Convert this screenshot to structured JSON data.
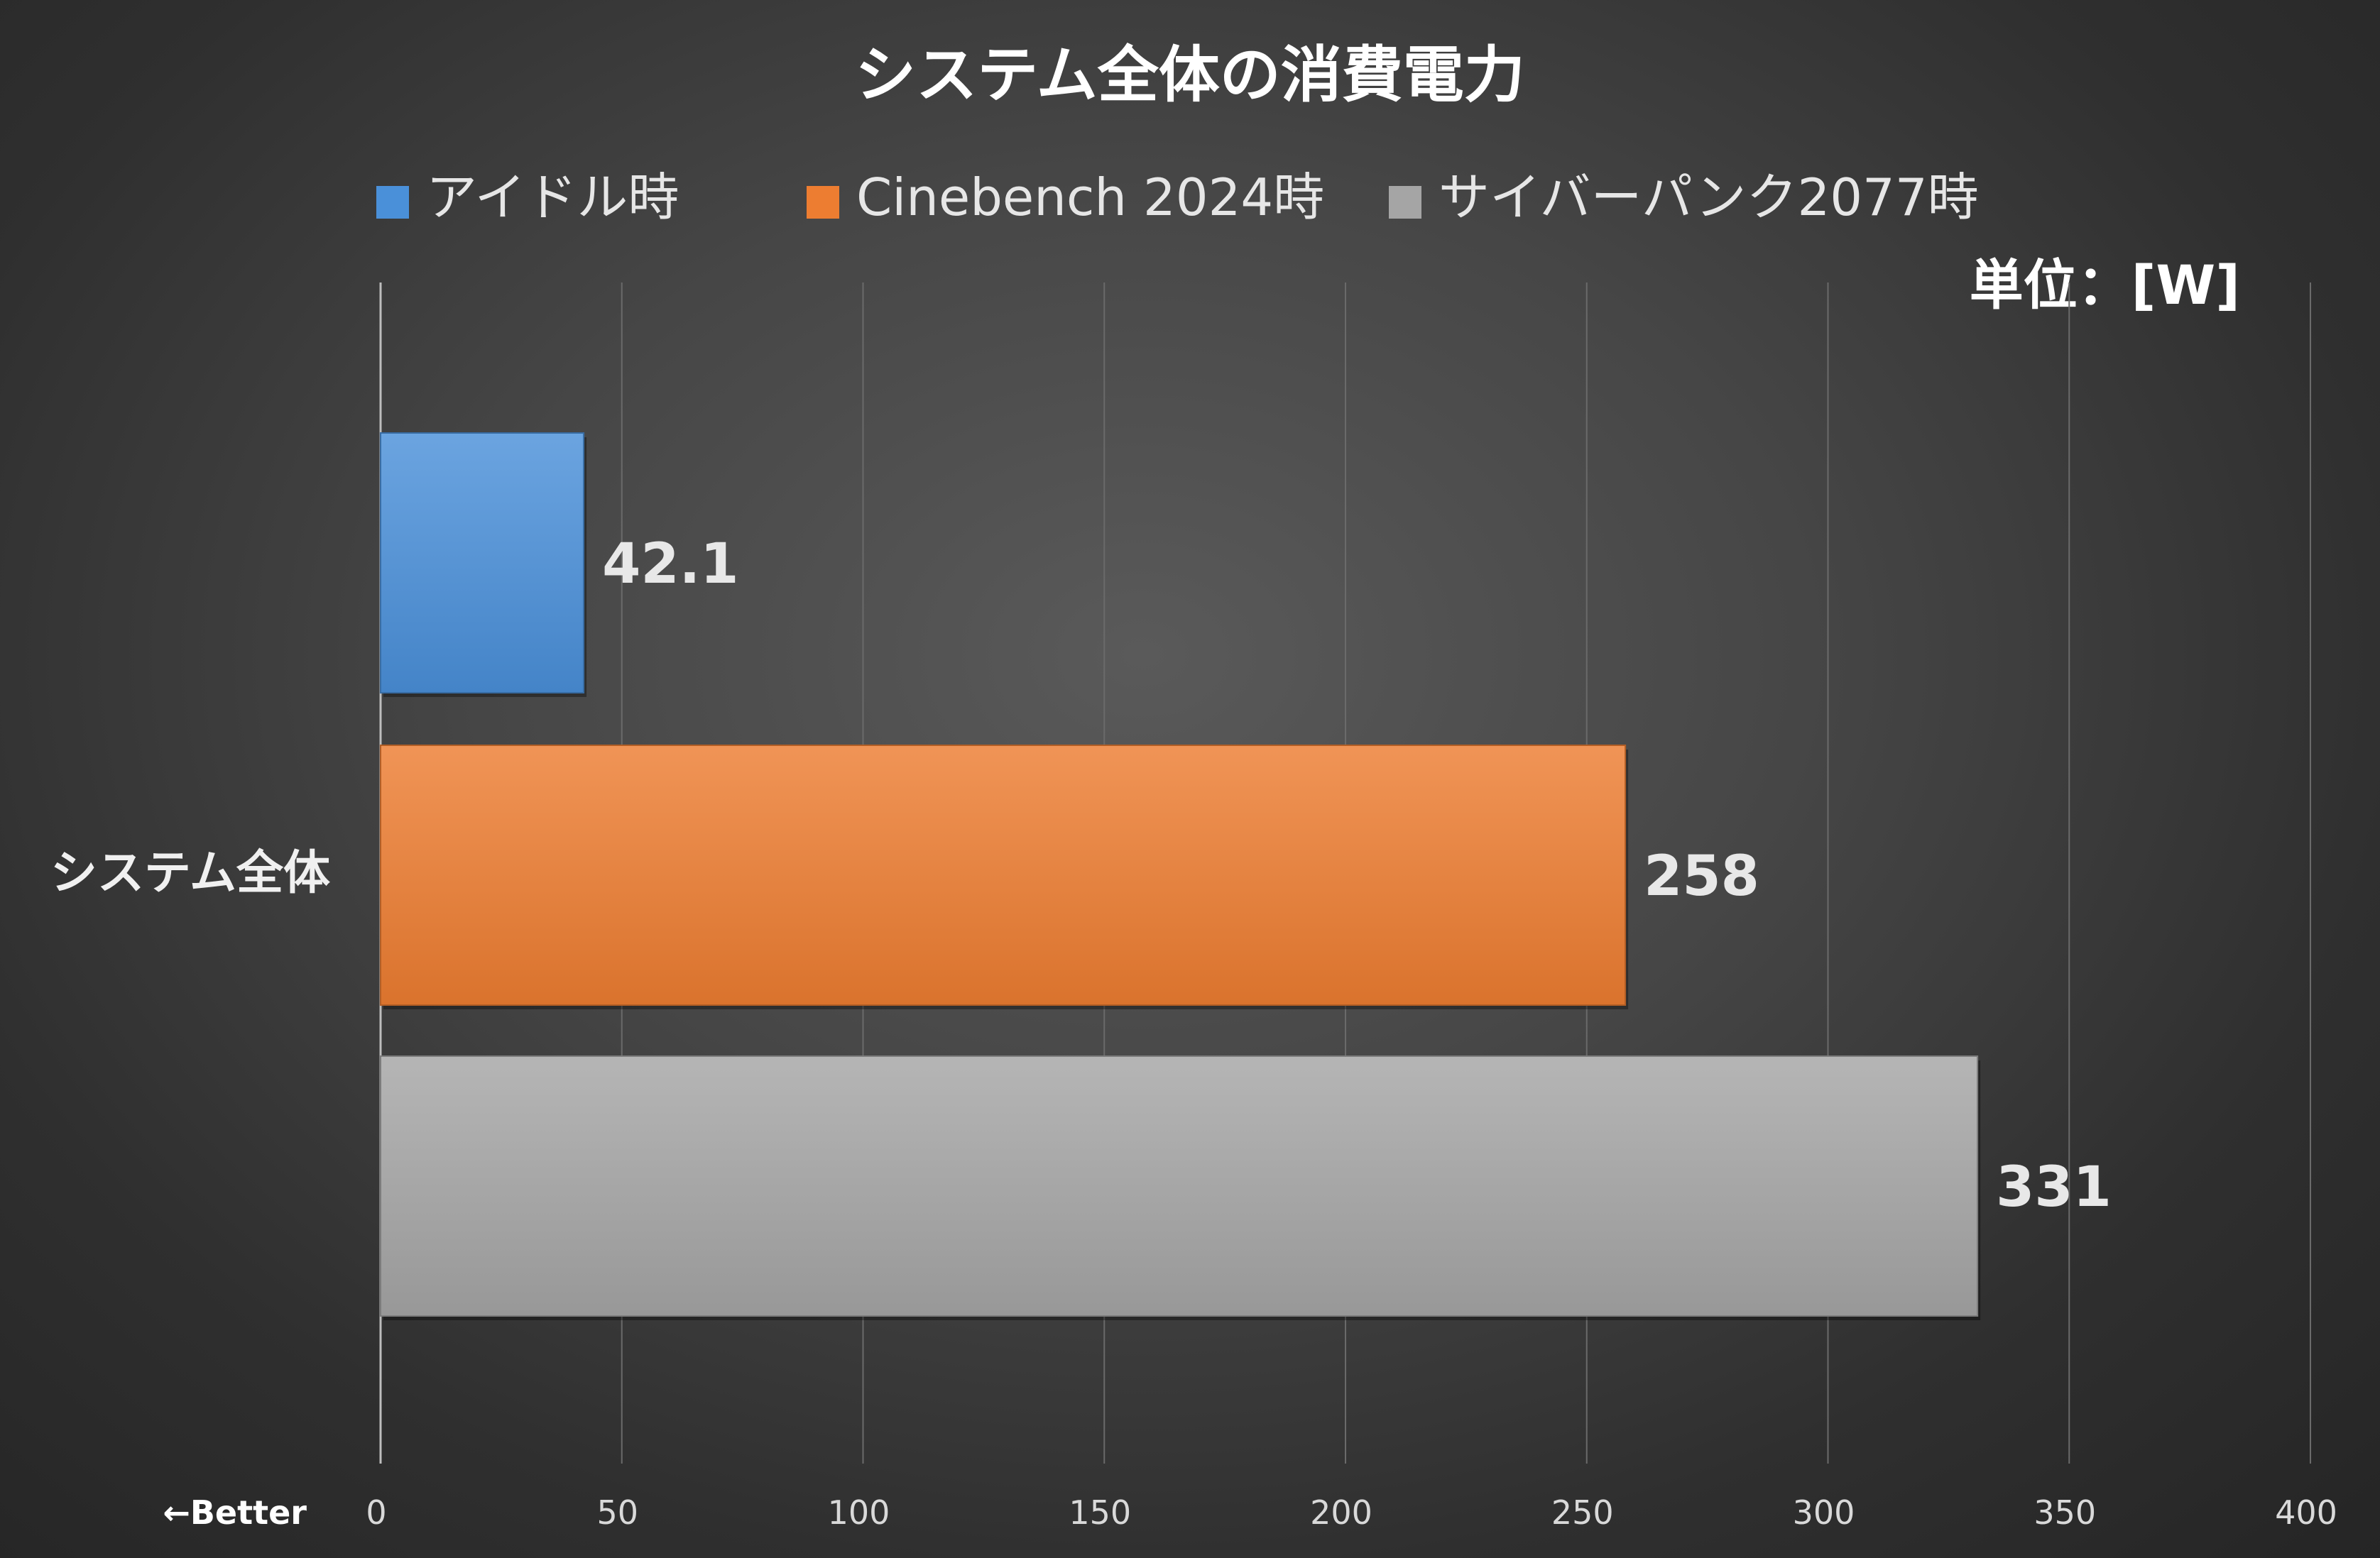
{
  "chart_data": {
    "type": "bar",
    "orientation": "horizontal",
    "title": "システム全体の消費電力",
    "unit_label": "単位：[W]",
    "better_label": "←Better",
    "categories": [
      "システム全体"
    ],
    "series": [
      {
        "name": "アイドル時",
        "values": [
          42.1
        ],
        "value_label": "42.1",
        "color": "#4a90d9"
      },
      {
        "name": "Cinebench 2024時",
        "values": [
          258
        ],
        "value_label": "258",
        "color": "#ed7d31"
      },
      {
        "name": "サイバーパンク2077時",
        "values": [
          331
        ],
        "value_label": "331",
        "color": "#a5a5a5"
      }
    ],
    "xlim": [
      0,
      400
    ],
    "xticks": [
      0,
      50,
      100,
      150,
      200,
      250,
      300,
      350,
      400
    ],
    "xtick_labels": [
      "0",
      "50",
      "100",
      "150",
      "200",
      "250",
      "300",
      "350",
      "400"
    ],
    "grid": true,
    "legend_position": "top"
  }
}
